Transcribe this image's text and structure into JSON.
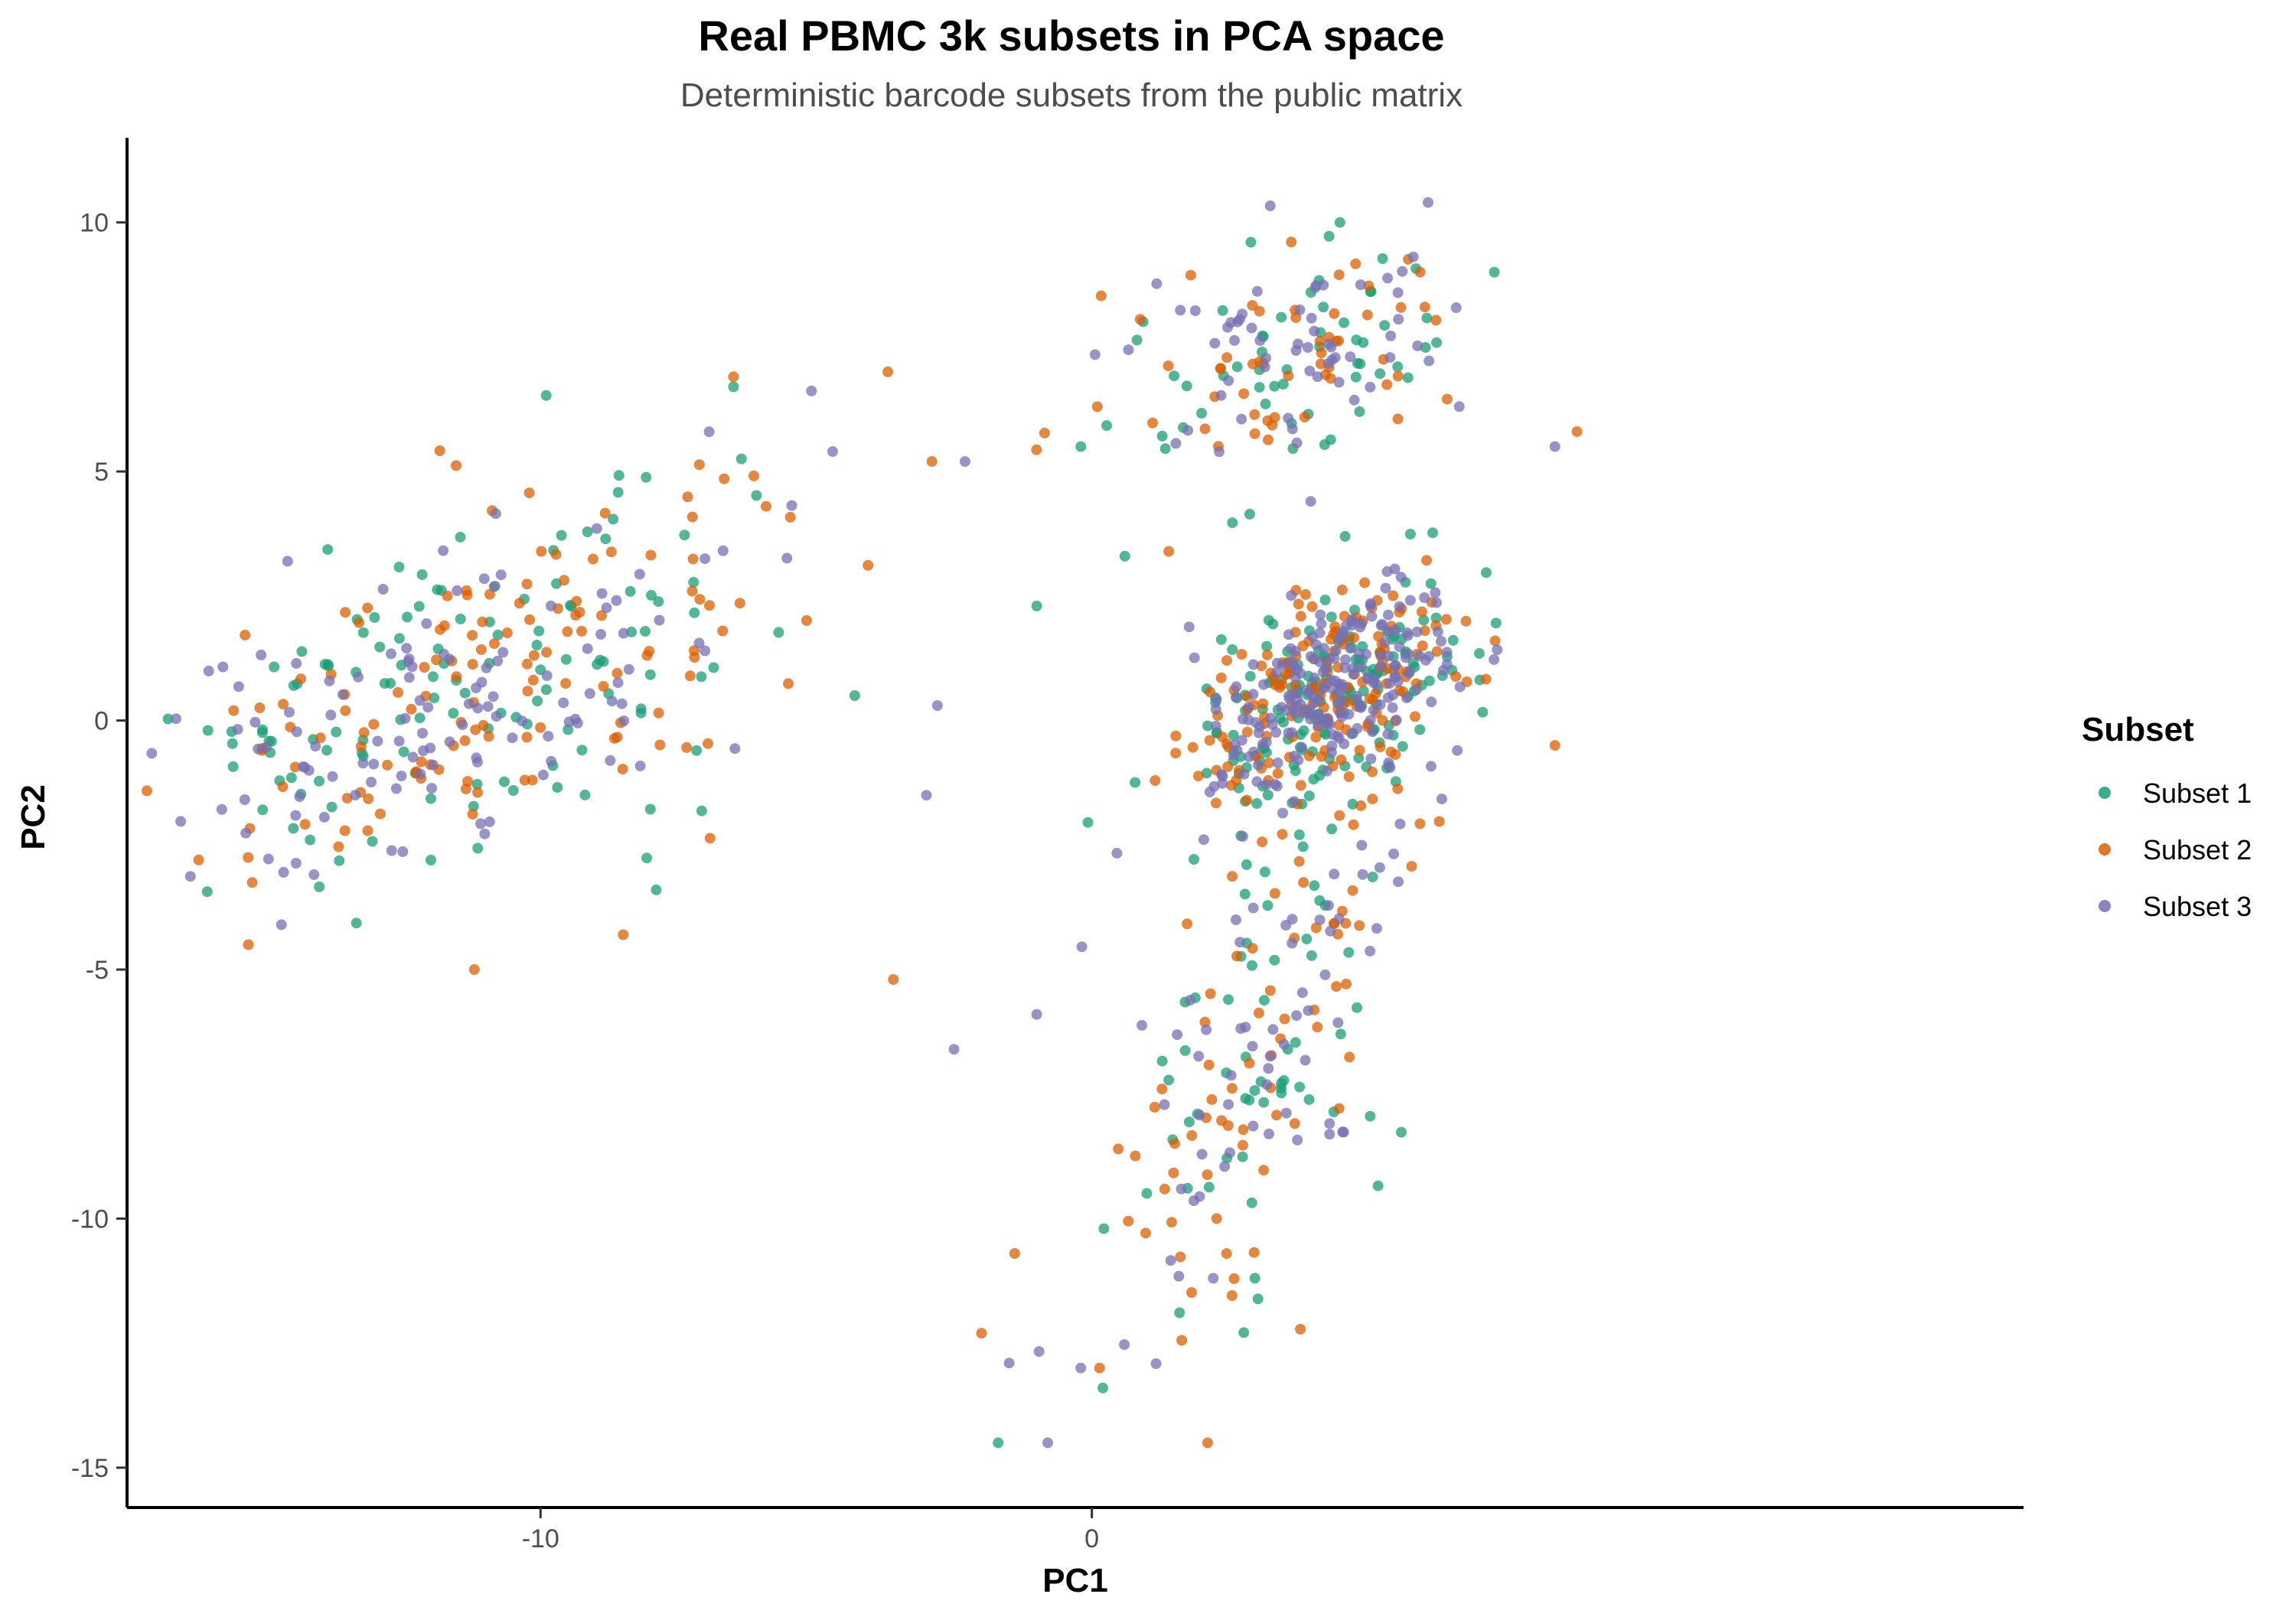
{
  "chart_data": {
    "type": "scatter",
    "title": "Real PBMC 3k subsets in PCA space",
    "subtitle": "Deterministic barcode subsets from the public matrix",
    "xlabel": "PC1",
    "ylabel": "PC2",
    "xlim": [
      -17.5,
      16.9
    ],
    "ylim": [
      -15.8,
      11.7
    ],
    "xticks": [
      -10,
      0
    ],
    "yticks": [
      10,
      5,
      0,
      -5,
      -10,
      -15
    ],
    "grid": false,
    "legend": {
      "title": "Subset",
      "position": "right"
    },
    "series": [
      {
        "name": "Subset 1",
        "color": "#1B9E77",
        "clusters": [
          {
            "cx": -11.5,
            "cy": 0.6,
            "sx": 2.8,
            "sy": 2.0,
            "rho": 0.55,
            "n": 130
          },
          {
            "cx": 4.3,
            "cy": 0.4,
            "sx": 1.3,
            "sy": 1.2,
            "rho": 0.5,
            "n": 150
          },
          {
            "cx": 3.2,
            "cy": -6.0,
            "sx": 1.3,
            "sy": 3.0,
            "rho": 0.6,
            "n": 70
          },
          {
            "cx": 3.8,
            "cy": 7.3,
            "sx": 1.5,
            "sy": 1.3,
            "rho": 0.3,
            "n": 55
          }
        ],
        "points": [
          [
            -6.5,
            6.7
          ],
          [
            -4.3,
            0.5
          ],
          [
            -7.9,
            -3.4
          ],
          [
            -0.2,
            5.5
          ],
          [
            -1.7,
            -14.5
          ],
          [
            0.2,
            -13.4
          ],
          [
            4.5,
            10.0
          ],
          [
            7.3,
            9.0
          ],
          [
            0.6,
            3.3
          ],
          [
            -1.0,
            2.3
          ]
        ]
      },
      {
        "name": "Subset 2",
        "color": "#D95F02",
        "clusters": [
          {
            "cx": -11.3,
            "cy": 0.7,
            "sx": 2.8,
            "sy": 2.0,
            "rho": 0.55,
            "n": 135
          },
          {
            "cx": 4.3,
            "cy": 0.5,
            "sx": 1.3,
            "sy": 1.2,
            "rho": 0.5,
            "n": 165
          },
          {
            "cx": 3.0,
            "cy": -6.3,
            "sx": 1.3,
            "sy": 3.0,
            "rho": 0.6,
            "n": 75
          },
          {
            "cx": 3.8,
            "cy": 7.2,
            "sx": 1.5,
            "sy": 1.3,
            "rho": 0.3,
            "n": 55
          }
        ],
        "points": [
          [
            -6.5,
            6.9
          ],
          [
            -3.7,
            7.0
          ],
          [
            -2.9,
            5.2
          ],
          [
            -16.2,
            -2.8
          ],
          [
            -15.3,
            -4.5
          ],
          [
            -11.2,
            -5.0
          ],
          [
            -8.5,
            -4.3
          ],
          [
            -3.6,
            -5.2
          ],
          [
            -2.0,
            -12.3
          ],
          [
            -1.4,
            -10.7
          ],
          [
            2.1,
            -14.5
          ],
          [
            8.8,
            5.8
          ],
          [
            8.4,
            -0.5
          ],
          [
            0.1,
            6.3
          ]
        ]
      },
      {
        "name": "Subset 3",
        "color": "#7570B3",
        "clusters": [
          {
            "cx": -11.7,
            "cy": 0.5,
            "sx": 2.8,
            "sy": 2.0,
            "rho": 0.55,
            "n": 130
          },
          {
            "cx": 4.4,
            "cy": 0.6,
            "sx": 1.1,
            "sy": 1.0,
            "rho": 0.5,
            "n": 210
          },
          {
            "cx": 3.2,
            "cy": -6.0,
            "sx": 1.3,
            "sy": 3.0,
            "rho": 0.6,
            "n": 70
          },
          {
            "cx": 3.8,
            "cy": 7.4,
            "sx": 1.5,
            "sy": 1.3,
            "rho": 0.3,
            "n": 60
          }
        ],
        "points": [
          [
            -4.7,
            5.4
          ],
          [
            -2.3,
            5.2
          ],
          [
            -3.0,
            -1.5
          ],
          [
            -2.5,
            -6.6
          ],
          [
            -1.0,
            -5.9
          ],
          [
            -0.2,
            -13.0
          ],
          [
            6.1,
            10.4
          ],
          [
            8.4,
            5.5
          ],
          [
            -14.2,
            -1.0
          ],
          [
            -1.5,
            -12.9
          ],
          [
            -0.8,
            -14.5
          ],
          [
            -2.8,
            0.3
          ]
        ]
      }
    ]
  }
}
